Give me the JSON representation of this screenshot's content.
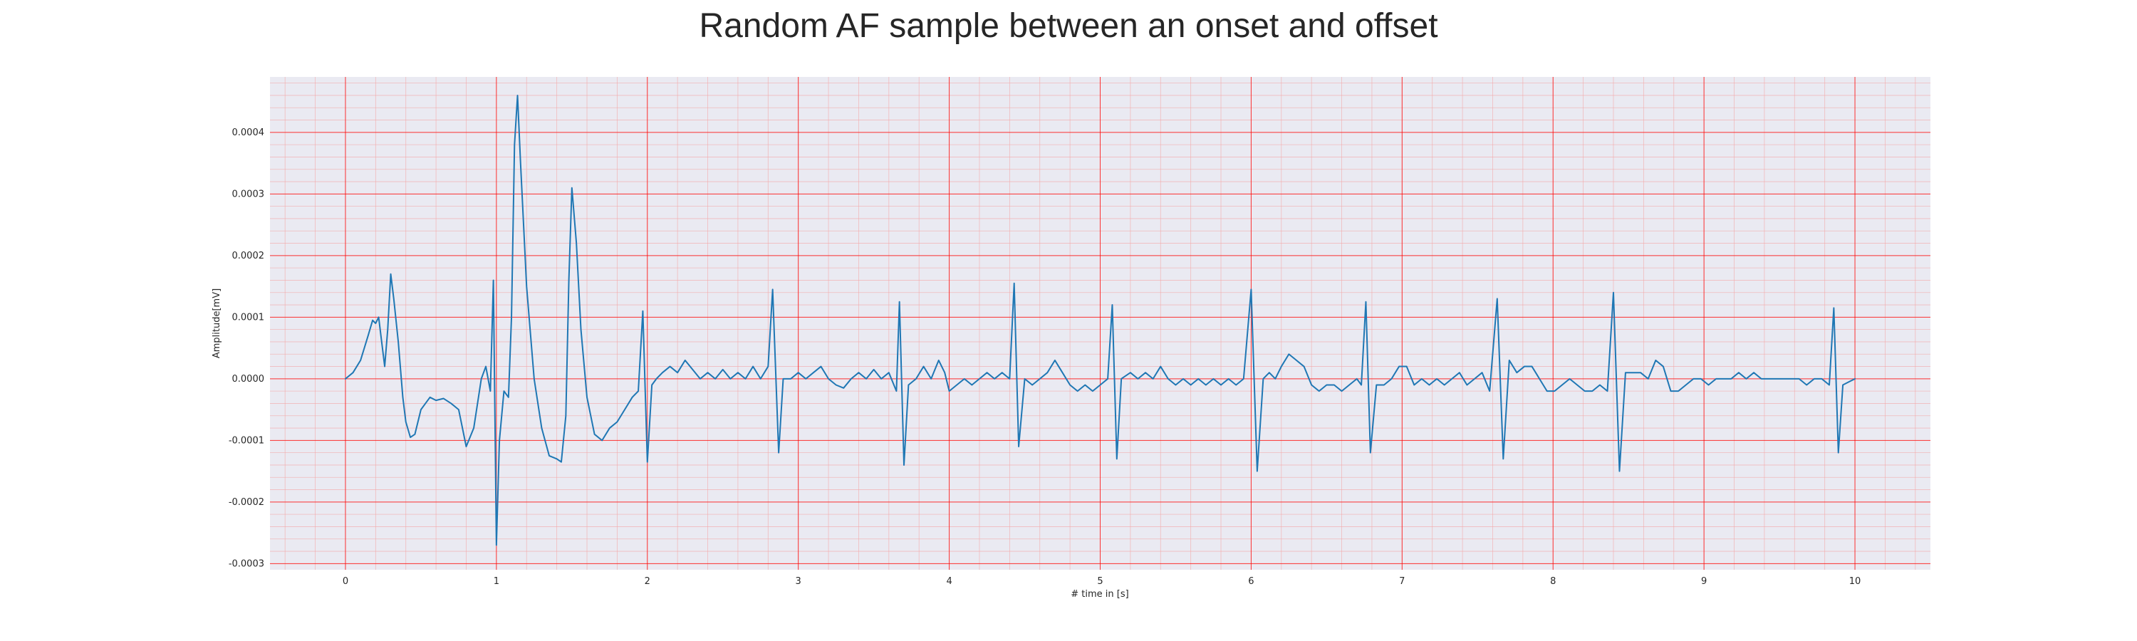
{
  "chart_data": {
    "type": "line",
    "title": "Random AF sample between an onset and offset",
    "xlabel": "# time in [s]",
    "ylabel": "Amplitude[mV]",
    "xlim": [
      -0.5,
      10.5
    ],
    "ylim": [
      -0.00031,
      0.00049
    ],
    "grid": "major and minor (ECG paper style)",
    "x_ticks": [
      0,
      1,
      2,
      3,
      4,
      5,
      6,
      7,
      8,
      9,
      10
    ],
    "x_tick_labels": [
      "0",
      "1",
      "2",
      "3",
      "4",
      "5",
      "6",
      "7",
      "8",
      "9",
      "10"
    ],
    "y_ticks": [
      -0.0003,
      -0.0002,
      -0.0001,
      0.0,
      0.0001,
      0.0002,
      0.0003,
      0.0004
    ],
    "y_tick_labels": [
      "-0.0003",
      "-0.0002",
      "-0.0001",
      "0.0000",
      "0.0001",
      "0.0002",
      "0.0003",
      "0.0004"
    ],
    "series": [
      {
        "points": [
          [
            0.0,
            0.0
          ],
          [
            0.05,
            1e-05
          ],
          [
            0.1,
            3e-05
          ],
          [
            0.15,
            7e-05
          ],
          [
            0.18,
            9.5e-05
          ],
          [
            0.2,
            9e-05
          ],
          [
            0.22,
            0.0001
          ],
          [
            0.24,
            6e-05
          ],
          [
            0.26,
            2e-05
          ],
          [
            0.28,
            8e-05
          ],
          [
            0.3,
            0.00017
          ],
          [
            0.32,
            0.00013
          ],
          [
            0.35,
            6e-05
          ],
          [
            0.38,
            -3e-05
          ],
          [
            0.4,
            -7e-05
          ],
          [
            0.43,
            -9.5e-05
          ],
          [
            0.46,
            -9e-05
          ],
          [
            0.5,
            -5e-05
          ],
          [
            0.53,
            -4e-05
          ],
          [
            0.56,
            -3e-05
          ],
          [
            0.6,
            -3.5e-05
          ],
          [
            0.65,
            -3.2e-05
          ],
          [
            0.7,
            -4e-05
          ],
          [
            0.75,
            -5e-05
          ],
          [
            0.8,
            -0.00011
          ],
          [
            0.85,
            -8e-05
          ],
          [
            0.9,
            0.0
          ],
          [
            0.93,
            2e-05
          ],
          [
            0.96,
            -2e-05
          ],
          [
            0.98,
            0.00016
          ],
          [
            1.0,
            -0.00027
          ],
          [
            1.02,
            -0.0001
          ],
          [
            1.05,
            -2e-05
          ],
          [
            1.08,
            -3e-05
          ],
          [
            1.1,
            0.0001
          ],
          [
            1.12,
            0.00038
          ],
          [
            1.14,
            0.00046
          ],
          [
            1.16,
            0.00035
          ],
          [
            1.2,
            0.00015
          ],
          [
            1.25,
            0.0
          ],
          [
            1.3,
            -8e-05
          ],
          [
            1.35,
            -0.000125
          ],
          [
            1.4,
            -0.00013
          ],
          [
            1.43,
            -0.000135
          ],
          [
            1.46,
            -6e-05
          ],
          [
            1.48,
            0.00016
          ],
          [
            1.5,
            0.00031
          ],
          [
            1.53,
            0.00022
          ],
          [
            1.56,
            8e-05
          ],
          [
            1.6,
            -3e-05
          ],
          [
            1.65,
            -9e-05
          ],
          [
            1.7,
            -0.0001
          ],
          [
            1.75,
            -8e-05
          ],
          [
            1.8,
            -7e-05
          ],
          [
            1.85,
            -5e-05
          ],
          [
            1.9,
            -3e-05
          ],
          [
            1.94,
            -2e-05
          ],
          [
            1.97,
            0.00011
          ],
          [
            2.0,
            -0.000135
          ],
          [
            2.03,
            -1e-05
          ],
          [
            2.06,
            0.0
          ],
          [
            2.1,
            1e-05
          ],
          [
            2.15,
            2e-05
          ],
          [
            2.2,
            1e-05
          ],
          [
            2.25,
            3e-05
          ],
          [
            2.3,
            1.5e-05
          ],
          [
            2.35,
            0.0
          ],
          [
            2.4,
            1e-05
          ],
          [
            2.45,
            0.0
          ],
          [
            2.5,
            1.5e-05
          ],
          [
            2.55,
            0.0
          ],
          [
            2.6,
            1e-05
          ],
          [
            2.65,
            0.0
          ],
          [
            2.7,
            2e-05
          ],
          [
            2.75,
            0.0
          ],
          [
            2.8,
            2e-05
          ],
          [
            2.83,
            0.000145
          ],
          [
            2.87,
            -0.00012
          ],
          [
            2.9,
            0.0
          ],
          [
            2.95,
            0.0
          ],
          [
            3.0,
            1e-05
          ],
          [
            3.05,
            0.0
          ],
          [
            3.1,
            1e-05
          ],
          [
            3.15,
            2e-05
          ],
          [
            3.2,
            0.0
          ],
          [
            3.25,
            -1e-05
          ],
          [
            3.3,
            -1.5e-05
          ],
          [
            3.35,
            0.0
          ],
          [
            3.4,
            1e-05
          ],
          [
            3.45,
            0.0
          ],
          [
            3.5,
            1.5e-05
          ],
          [
            3.55,
            0.0
          ],
          [
            3.6,
            1e-05
          ],
          [
            3.65,
            -2e-05
          ],
          [
            3.67,
            0.000125
          ],
          [
            3.7,
            -0.00014
          ],
          [
            3.73,
            -1e-05
          ],
          [
            3.78,
            0.0
          ],
          [
            3.83,
            2e-05
          ],
          [
            3.88,
            0.0
          ],
          [
            3.93,
            3e-05
          ],
          [
            3.97,
            1e-05
          ],
          [
            4.0,
            -2e-05
          ],
          [
            4.05,
            -1e-05
          ],
          [
            4.1,
            0.0
          ],
          [
            4.15,
            -1e-05
          ],
          [
            4.2,
            0.0
          ],
          [
            4.25,
            1e-05
          ],
          [
            4.3,
            0.0
          ],
          [
            4.35,
            1e-05
          ],
          [
            4.4,
            0.0
          ],
          [
            4.43,
            0.000155
          ],
          [
            4.46,
            -0.00011
          ],
          [
            4.5,
            0.0
          ],
          [
            4.55,
            -1e-05
          ],
          [
            4.6,
            0.0
          ],
          [
            4.65,
            1e-05
          ],
          [
            4.7,
            3e-05
          ],
          [
            4.75,
            1e-05
          ],
          [
            4.8,
            -1e-05
          ],
          [
            4.85,
            -2e-05
          ],
          [
            4.9,
            -1e-05
          ],
          [
            4.95,
            -2e-05
          ],
          [
            5.0,
            -1e-05
          ],
          [
            5.05,
            0.0
          ],
          [
            5.08,
            0.00012
          ],
          [
            5.11,
            -0.00013
          ],
          [
            5.14,
            0.0
          ],
          [
            5.2,
            1e-05
          ],
          [
            5.25,
            0.0
          ],
          [
            5.3,
            1e-05
          ],
          [
            5.35,
            0.0
          ],
          [
            5.4,
            2e-05
          ],
          [
            5.45,
            0.0
          ],
          [
            5.5,
            -1e-05
          ],
          [
            5.55,
            0.0
          ],
          [
            5.6,
            -1e-05
          ],
          [
            5.65,
            0.0
          ],
          [
            5.7,
            -1e-05
          ],
          [
            5.75,
            0.0
          ],
          [
            5.8,
            -1e-05
          ],
          [
            5.85,
            0.0
          ],
          [
            5.9,
            -1e-05
          ],
          [
            5.95,
            0.0
          ],
          [
            6.0,
            0.000145
          ],
          [
            6.04,
            -0.00015
          ],
          [
            6.08,
            0.0
          ],
          [
            6.12,
            1e-05
          ],
          [
            6.16,
            0.0
          ],
          [
            6.2,
            2e-05
          ],
          [
            6.25,
            4e-05
          ],
          [
            6.3,
            3e-05
          ],
          [
            6.35,
            2e-05
          ],
          [
            6.4,
            -1e-05
          ],
          [
            6.45,
            -2e-05
          ],
          [
            6.5,
            -1e-05
          ],
          [
            6.55,
            -1e-05
          ],
          [
            6.6,
            -2e-05
          ],
          [
            6.65,
            -1e-05
          ],
          [
            6.7,
            0.0
          ],
          [
            6.73,
            -1e-05
          ],
          [
            6.76,
            0.000125
          ],
          [
            6.79,
            -0.00012
          ],
          [
            6.83,
            -1e-05
          ],
          [
            6.88,
            -1e-05
          ],
          [
            6.93,
            0.0
          ],
          [
            6.98,
            2e-05
          ],
          [
            7.03,
            2e-05
          ],
          [
            7.08,
            -1e-05
          ],
          [
            7.13,
            0.0
          ],
          [
            7.18,
            -1e-05
          ],
          [
            7.23,
            0.0
          ],
          [
            7.28,
            -1e-05
          ],
          [
            7.33,
            0.0
          ],
          [
            7.38,
            1e-05
          ],
          [
            7.43,
            -1e-05
          ],
          [
            7.48,
            0.0
          ],
          [
            7.53,
            1e-05
          ],
          [
            7.58,
            -2e-05
          ],
          [
            7.63,
            0.00013
          ],
          [
            7.67,
            -0.00013
          ],
          [
            7.71,
            3e-05
          ],
          [
            7.76,
            1e-05
          ],
          [
            7.81,
            2e-05
          ],
          [
            7.86,
            2e-05
          ],
          [
            7.91,
            0.0
          ],
          [
            7.96,
            -2e-05
          ],
          [
            8.01,
            -2e-05
          ],
          [
            8.06,
            -1e-05
          ],
          [
            8.11,
            0.0
          ],
          [
            8.16,
            -1e-05
          ],
          [
            8.21,
            -2e-05
          ],
          [
            8.26,
            -2e-05
          ],
          [
            8.31,
            -1e-05
          ],
          [
            8.36,
            -2e-05
          ],
          [
            8.4,
            0.00014
          ],
          [
            8.44,
            -0.00015
          ],
          [
            8.48,
            1e-05
          ],
          [
            8.53,
            1e-05
          ],
          [
            8.58,
            1e-05
          ],
          [
            8.63,
            0.0
          ],
          [
            8.68,
            3e-05
          ],
          [
            8.73,
            2e-05
          ],
          [
            8.78,
            -2e-05
          ],
          [
            8.83,
            -2e-05
          ],
          [
            8.88,
            -1e-05
          ],
          [
            8.93,
            0.0
          ],
          [
            8.98,
            0.0
          ],
          [
            9.03,
            -1e-05
          ],
          [
            9.08,
            0.0
          ],
          [
            9.13,
            0.0
          ],
          [
            9.18,
            0.0
          ],
          [
            9.23,
            1e-05
          ],
          [
            9.28,
            0.0
          ],
          [
            9.33,
            1e-05
          ],
          [
            9.38,
            0.0
          ],
          [
            9.43,
            0.0
          ],
          [
            9.48,
            0.0
          ],
          [
            9.53,
            0.0
          ],
          [
            9.58,
            0.0
          ],
          [
            9.63,
            0.0
          ],
          [
            9.68,
            -1e-05
          ],
          [
            9.73,
            0.0
          ],
          [
            9.78,
            0.0
          ],
          [
            9.83,
            -1e-05
          ],
          [
            9.86,
            0.000115
          ],
          [
            9.89,
            -0.00012
          ],
          [
            9.92,
            -1e-05
          ],
          [
            9.96,
            -5e-06
          ],
          [
            10.0,
            0.0
          ]
        ],
        "color": "#1f77b4"
      }
    ],
    "colors": {
      "plot_background": "#eaeaf2",
      "major_grid": "#ff0000",
      "minor_grid": "#f4a7a7",
      "line": "#1f77b4",
      "text": "#262626"
    }
  }
}
